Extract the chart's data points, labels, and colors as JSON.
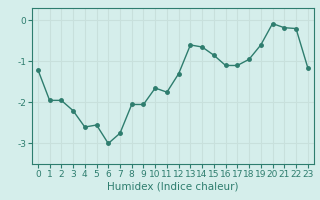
{
  "x": [
    0,
    1,
    2,
    3,
    4,
    5,
    6,
    7,
    8,
    9,
    10,
    11,
    12,
    13,
    14,
    15,
    16,
    17,
    18,
    19,
    20,
    21,
    22,
    23
  ],
  "y": [
    -1.2,
    -1.95,
    -1.95,
    -2.2,
    -2.6,
    -2.55,
    -3.0,
    -2.75,
    -2.05,
    -2.05,
    -1.65,
    -1.75,
    -1.3,
    -0.6,
    -0.65,
    -0.85,
    -1.1,
    -1.1,
    -0.95,
    -0.6,
    -0.08,
    -0.18,
    -0.2,
    -1.15
  ],
  "line_color": "#2e7d6e",
  "marker_color": "#2e7d6e",
  "bg_color": "#d5eeeb",
  "grid_color": "#c8e0dc",
  "title": "",
  "xlabel": "Humidex (Indice chaleur)",
  "ylabel": "",
  "ylim": [
    -3.5,
    0.3
  ],
  "xlim": [
    -0.5,
    23.5
  ],
  "yticks": [
    0,
    -1,
    -2,
    -3
  ],
  "xticks": [
    0,
    1,
    2,
    3,
    4,
    5,
    6,
    7,
    8,
    9,
    10,
    11,
    12,
    13,
    14,
    15,
    16,
    17,
    18,
    19,
    20,
    21,
    22,
    23
  ],
  "tick_label_fontsize": 6.5,
  "xlabel_fontsize": 7.5,
  "line_width": 1.0,
  "marker_size": 2.5
}
